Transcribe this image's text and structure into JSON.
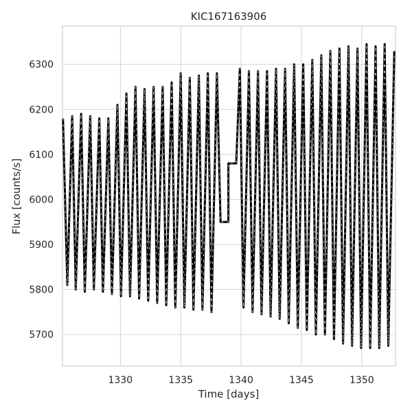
{
  "chart_data": {
    "type": "line",
    "title": "KIC167163906",
    "xlabel": "Time [days]",
    "ylabel": "Flux [counts/s]",
    "xlim": [
      1325.2,
      1352.8
    ],
    "ylim": [
      5630,
      6385
    ],
    "x_ticks": [
      1330,
      1335,
      1340,
      1345,
      1350
    ],
    "y_ticks": [
      5700,
      5800,
      5900,
      6000,
      6100,
      6200,
      6300
    ],
    "grid": true,
    "series": [
      {
        "color": "#000000",
        "points": [
          [
            1325.24,
            6180
          ],
          [
            1325.6,
            5810
          ],
          [
            1326.0,
            6185
          ],
          [
            1326.3,
            5800
          ],
          [
            1326.75,
            6190
          ],
          [
            1327.05,
            5795
          ],
          [
            1327.5,
            6185
          ],
          [
            1327.8,
            5800
          ],
          [
            1328.25,
            6180
          ],
          [
            1328.55,
            5795
          ],
          [
            1329.0,
            6180
          ],
          [
            1329.3,
            5790
          ],
          [
            1329.75,
            6210
          ],
          [
            1330.05,
            5785
          ],
          [
            1330.5,
            6235
          ],
          [
            1330.8,
            5785
          ],
          [
            1331.25,
            6250
          ],
          [
            1331.55,
            5780
          ],
          [
            1332.0,
            6245
          ],
          [
            1332.3,
            5775
          ],
          [
            1332.75,
            6250
          ],
          [
            1333.05,
            5770
          ],
          [
            1333.5,
            6250
          ],
          [
            1333.8,
            5765
          ],
          [
            1334.25,
            6260
          ],
          [
            1334.55,
            5760
          ],
          [
            1335.0,
            6280
          ],
          [
            1335.3,
            5760
          ],
          [
            1335.75,
            6270
          ],
          [
            1336.05,
            5755
          ],
          [
            1336.5,
            6275
          ],
          [
            1336.8,
            5755
          ],
          [
            1337.25,
            6280
          ],
          [
            1337.55,
            5750
          ],
          [
            1338.0,
            6280
          ],
          [
            1338.3,
            5950
          ],
          [
            1338.35,
            5950
          ],
          [
            1338.95,
            5950
          ],
          [
            1338.95,
            6080
          ],
          [
            1339.6,
            6080
          ],
          [
            1339.9,
            6290
          ],
          [
            1340.2,
            5760
          ],
          [
            1340.65,
            6285
          ],
          [
            1340.95,
            5750
          ],
          [
            1341.4,
            6285
          ],
          [
            1341.7,
            5745
          ],
          [
            1342.15,
            6285
          ],
          [
            1342.45,
            5740
          ],
          [
            1342.9,
            6290
          ],
          [
            1343.2,
            5735
          ],
          [
            1343.65,
            6290
          ],
          [
            1343.95,
            5725
          ],
          [
            1344.4,
            6300
          ],
          [
            1344.7,
            5715
          ],
          [
            1345.15,
            6300
          ],
          [
            1345.45,
            5710
          ],
          [
            1345.9,
            6310
          ],
          [
            1346.2,
            5700
          ],
          [
            1346.65,
            6320
          ],
          [
            1346.95,
            5700
          ],
          [
            1347.4,
            6330
          ],
          [
            1347.7,
            5690
          ],
          [
            1348.15,
            6335
          ],
          [
            1348.45,
            5680
          ],
          [
            1348.9,
            6340
          ],
          [
            1349.2,
            5675
          ],
          [
            1349.65,
            6335
          ],
          [
            1349.95,
            5670
          ],
          [
            1350.4,
            6345
          ],
          [
            1350.7,
            5670
          ],
          [
            1351.15,
            6340
          ],
          [
            1351.45,
            5670
          ],
          [
            1351.9,
            6345
          ],
          [
            1352.2,
            5675
          ],
          [
            1352.7,
            6330
          ]
        ]
      }
    ]
  }
}
